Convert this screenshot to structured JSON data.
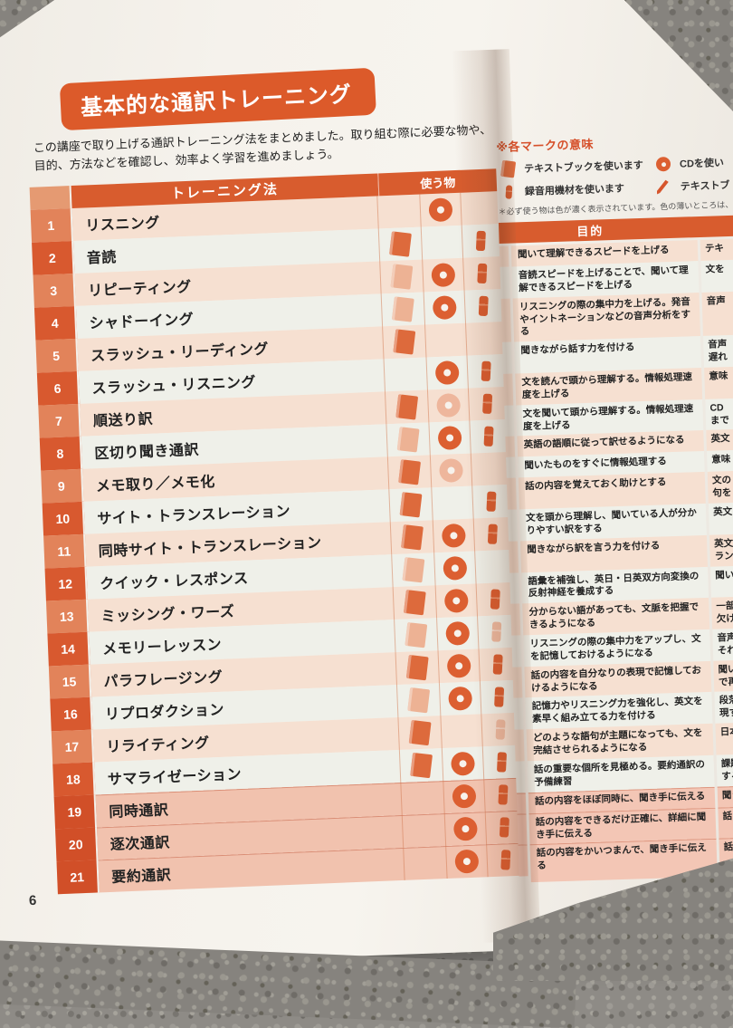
{
  "page": {
    "number": "6",
    "title": "基本的な通訳トレーニング",
    "intro": "この講座で取り上げる通訳トレーニング法をまとめました。取り組む際に必要な物や、\n目的、方法などを確認し、効率よく学習を進めましょう。"
  },
  "colors": {
    "accent_orange": "#d85c2e",
    "stripe_peach": "#f6e0d1",
    "stripe_mint": "#eff0e9",
    "highlight_pink": "#f3c6b5",
    "page_background": "#f3f0ea"
  },
  "left_table": {
    "col_method": "トレーニング法",
    "col_items": "使う物",
    "rows": [
      {
        "num": "1",
        "name": "リスニング",
        "textbook": null,
        "cd": "dark",
        "mic": null,
        "highlight": false
      },
      {
        "num": "2",
        "name": "音読",
        "textbook": "dark",
        "cd": null,
        "mic": "dark",
        "highlight": false
      },
      {
        "num": "3",
        "name": "リピーティング",
        "textbook": "light",
        "cd": "dark",
        "mic": "dark",
        "highlight": false
      },
      {
        "num": "4",
        "name": "シャドーイング",
        "textbook": "light",
        "cd": "dark",
        "mic": "dark",
        "highlight": false
      },
      {
        "num": "5",
        "name": "スラッシュ・リーディング",
        "textbook": "dark",
        "cd": null,
        "mic": null,
        "highlight": false
      },
      {
        "num": "6",
        "name": "スラッシュ・リスニング",
        "textbook": null,
        "cd": "dark",
        "mic": "dark",
        "highlight": false
      },
      {
        "num": "7",
        "name": "順送り訳",
        "textbook": "dark",
        "cd": "light",
        "mic": "dark",
        "highlight": false
      },
      {
        "num": "8",
        "name": "区切り聞き通訳",
        "textbook": "light",
        "cd": "dark",
        "mic": "dark",
        "highlight": false
      },
      {
        "num": "9",
        "name": "メモ取り／メモ化",
        "textbook": "dark",
        "cd": "light",
        "mic": null,
        "highlight": false
      },
      {
        "num": "10",
        "name": "サイト・トランスレーション",
        "textbook": "dark",
        "cd": null,
        "mic": "dark",
        "highlight": false
      },
      {
        "num": "11",
        "name": "同時サイト・トランスレーション",
        "textbook": "dark",
        "cd": "dark",
        "mic": "dark",
        "highlight": false
      },
      {
        "num": "12",
        "name": "クイック・レスポンス",
        "textbook": "light",
        "cd": "dark",
        "mic": null,
        "highlight": false
      },
      {
        "num": "13",
        "name": "ミッシング・ワーズ",
        "textbook": "dark",
        "cd": "dark",
        "mic": "dark",
        "highlight": false
      },
      {
        "num": "14",
        "name": "メモリーレッスン",
        "textbook": "light",
        "cd": "dark",
        "mic": "light",
        "highlight": false
      },
      {
        "num": "15",
        "name": "パラフレージング",
        "textbook": "dark",
        "cd": "dark",
        "mic": "dark",
        "highlight": false
      },
      {
        "num": "16",
        "name": "リプロダクション",
        "textbook": "light",
        "cd": "dark",
        "mic": "dark",
        "highlight": false
      },
      {
        "num": "17",
        "name": "リライティング",
        "textbook": "dark",
        "cd": null,
        "mic": "light",
        "highlight": false
      },
      {
        "num": "18",
        "name": "サマライゼーション",
        "textbook": "dark",
        "cd": "dark",
        "mic": "dark",
        "highlight": false
      },
      {
        "num": "19",
        "name": "同時通訳",
        "textbook": null,
        "cd": "dark",
        "mic": "dark",
        "highlight": true
      },
      {
        "num": "20",
        "name": "逐次通訳",
        "textbook": null,
        "cd": "dark",
        "mic": "dark",
        "highlight": true
      },
      {
        "num": "21",
        "name": "要約通訳",
        "textbook": null,
        "cd": "dark",
        "mic": "dark",
        "highlight": true
      }
    ]
  },
  "legend": {
    "title": "※各マークの意味",
    "items": [
      {
        "icon": "textbook-icon",
        "label": "テキストブックを使います"
      },
      {
        "icon": "cd-icon",
        "label": "CDを使い"
      },
      {
        "icon": "mic-icon",
        "label": "録音用機材を使います"
      },
      {
        "icon": "pen-icon",
        "label": "テキストブ"
      }
    ],
    "note": "＊必ず使う物は色が濃く表示されています。色の薄いところは、使"
  },
  "right_table": {
    "col_purpose": "目的",
    "rows": [
      {
        "purpose": "聞いて理解できるスピードを上げる",
        "fragment": "テキ",
        "highlight": false
      },
      {
        "purpose": "音読スピードを上げることで、聞いて理解できるスピードを上げる",
        "fragment": "文を",
        "highlight": false
      },
      {
        "purpose": "リスニングの際の集中力を上げる。発音やイントネーションなどの音声分析をする",
        "fragment": "音声",
        "highlight": false
      },
      {
        "purpose": "聞きながら話す力を付ける",
        "fragment": "音声\n遅れ",
        "highlight": false
      },
      {
        "purpose": "文を読んで頭から理解する。情報処理速度を上げる",
        "fragment": "意味",
        "highlight": false
      },
      {
        "purpose": "文を聞いて頭から理解する。情報処理速度を上げる",
        "fragment": "CD\nまで",
        "highlight": false
      },
      {
        "purpose": "英語の語順に従って訳せるようになる",
        "fragment": "英文",
        "highlight": false
      },
      {
        "purpose": "聞いたものをすぐに情報処理する",
        "fragment": "意味",
        "highlight": false
      },
      {
        "purpose": "話の内容を覚えておく助けとする",
        "fragment": "文の\n句を",
        "highlight": false
      },
      {
        "purpose": "文を頭から理解し、聞いている人が分かりやすい訳をする",
        "fragment": "英文",
        "highlight": false
      },
      {
        "purpose": "聞きながら訳を言う力を付ける",
        "fragment": "英文\nラン",
        "highlight": false
      },
      {
        "purpose": "語彙を補強し、英日・日英双方向変換の反射神経を養成する",
        "fragment": "聞い",
        "highlight": false
      },
      {
        "purpose": "分からない語があっても、文脈を把握できるようになる",
        "fragment": "一部\n欠け",
        "highlight": false
      },
      {
        "purpose": "リスニングの際の集中力をアップし、文を記憶しておけるようになる",
        "fragment": "音声\nそれ",
        "highlight": false
      },
      {
        "purpose": "話の内容を自分なりの表現で記憶しておけるようになる",
        "fragment": "聞い\nで再",
        "highlight": false
      },
      {
        "purpose": "記憶力やリスニング力を強化し、英文を素早く組み立てる力を付ける",
        "fragment": "段落\n現す",
        "highlight": false
      },
      {
        "purpose": "どのような語句が主題になっても、文を完結させられるようになる",
        "fragment": "日本",
        "highlight": false
      },
      {
        "purpose": "話の重要な個所を見極める。要約通訳の予備練習",
        "fragment": "課題\nする",
        "highlight": false
      },
      {
        "purpose": "話の内容をほぼ同時に、聞き手に伝える",
        "fragment": "聞き",
        "highlight": true
      },
      {
        "purpose": "話の内容をできるだけ正確に、詳細に聞き手に伝える",
        "fragment": "話し",
        "highlight": true
      },
      {
        "purpose": "話の内容をかいつまんで、聞き手に伝える",
        "fragment": "話が",
        "highlight": true
      }
    ]
  }
}
